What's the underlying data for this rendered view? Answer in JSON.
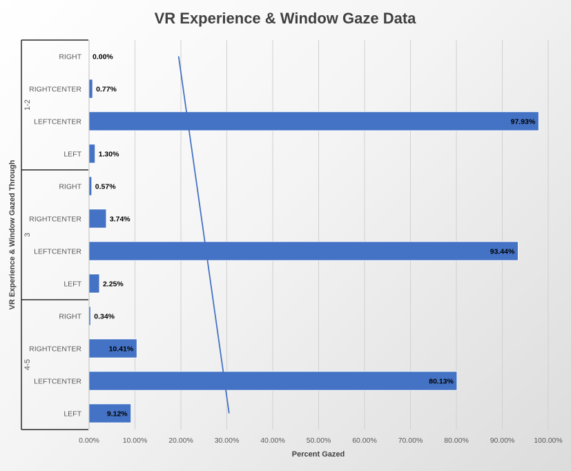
{
  "chart_data": {
    "type": "bar",
    "orientation": "horizontal",
    "title": "VR Experience & Window Gaze Data",
    "xlabel": "Percent Gazed",
    "ylabel": "VR Experience & Window Gazed Through",
    "xlim": [
      0,
      100
    ],
    "xticks": [
      "0.00%",
      "10.00%",
      "20.00%",
      "30.00%",
      "40.00%",
      "50.00%",
      "60.00%",
      "70.00%",
      "80.00%",
      "90.00%",
      "100.00%"
    ],
    "grid": true,
    "legend": "none",
    "bar_color": "#4472C4",
    "groups": [
      {
        "label": "1-2",
        "categories": [
          "RIGHT",
          "RIGHTCENTER",
          "LEFTCENTER",
          "LEFT"
        ],
        "values": [
          0.0,
          0.77,
          97.93,
          1.3
        ],
        "labels": [
          "0.00%",
          "0.77%",
          "97.93%",
          "1.30%"
        ]
      },
      {
        "label": "3",
        "categories": [
          "RIGHT",
          "RIGHTCENTER",
          "LEFTCENTER",
          "LEFT"
        ],
        "values": [
          0.57,
          3.74,
          93.44,
          2.25
        ],
        "labels": [
          "0.57%",
          "3.74%",
          "93.44%",
          "2.25%"
        ]
      },
      {
        "label": "4-5",
        "categories": [
          "RIGHT",
          "RIGHTCENTER",
          "LEFTCENTER",
          "LEFT"
        ],
        "values": [
          0.34,
          10.41,
          80.13,
          9.12
        ],
        "labels": [
          "0.34%",
          "10.41%",
          "80.13%",
          "9.12%"
        ]
      }
    ],
    "trendline": {
      "type": "linear",
      "color": "#4472C4",
      "start_value": 19.5,
      "end_value": 30.5
    }
  }
}
